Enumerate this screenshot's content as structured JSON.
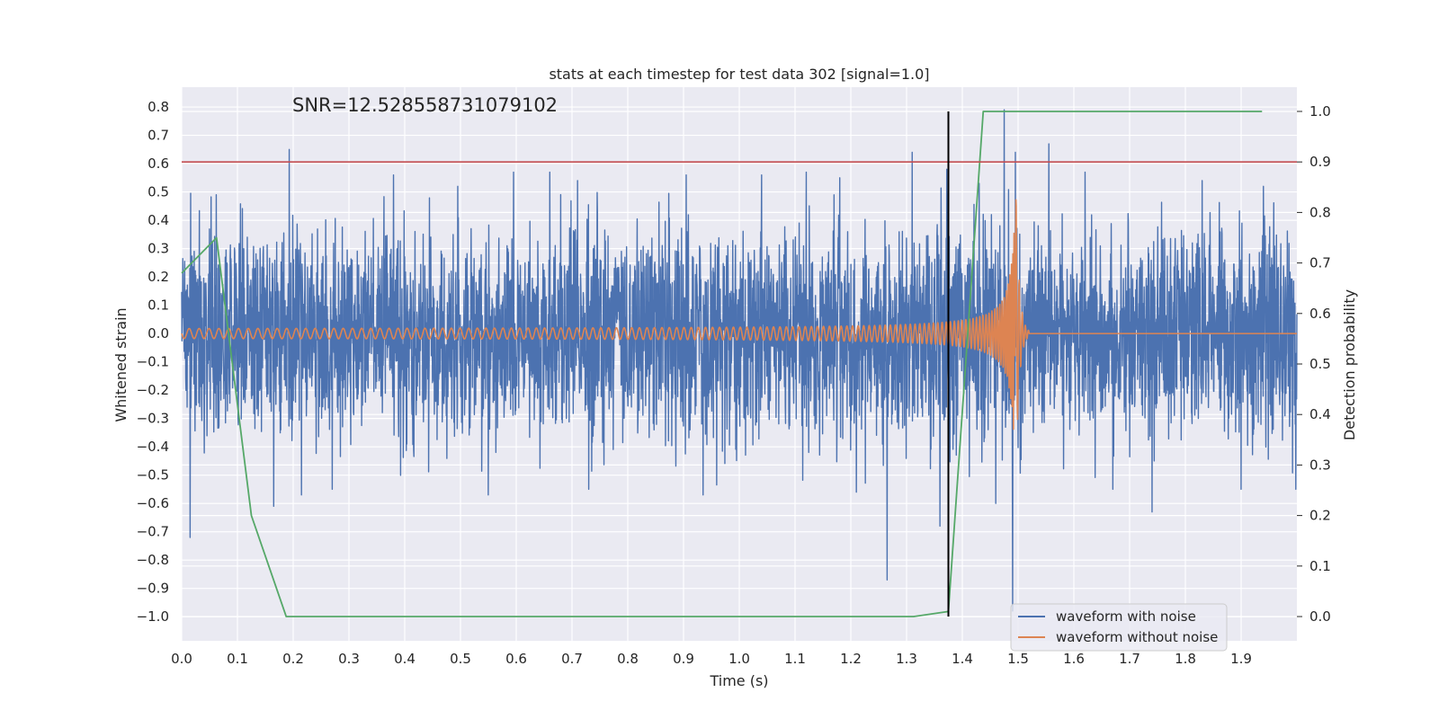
{
  "chart_data": {
    "type": "line",
    "title": "stats at each timestep for test data 302 [signal=1.0]",
    "annotation": "SNR=12.528558731079102",
    "xlabel": "Time (s)",
    "ylabel_left": "Whitened strain",
    "ylabel_right": "Detection probability",
    "xlim": [
      0.0,
      2.0
    ],
    "ylim_left": [
      -1.085,
      0.87
    ],
    "ylim_right": [
      -0.048,
      1.048
    ],
    "x_ticks": [
      "0.0",
      "0.1",
      "0.2",
      "0.3",
      "0.4",
      "0.5",
      "0.6",
      "0.7",
      "0.8",
      "0.9",
      "1.0",
      "1.1",
      "1.2",
      "1.3",
      "1.4",
      "1.5",
      "1.6",
      "1.7",
      "1.8",
      "1.9"
    ],
    "y_ticks_left": [
      "0.8",
      "0.7",
      "0.6",
      "0.5",
      "0.4",
      "0.3",
      "0.2",
      "0.1",
      "0.0",
      "−0.1",
      "−0.2",
      "−0.3",
      "−0.4",
      "−0.5",
      "−0.6",
      "−0.7",
      "−0.8",
      "−0.9",
      "−1.0"
    ],
    "y_ticks_right": [
      "1.0",
      "0.9",
      "0.8",
      "0.7",
      "0.6",
      "0.5",
      "0.4",
      "0.3",
      "0.2",
      "0.1",
      "0.0"
    ],
    "threshold": {
      "axis": "right",
      "value": 0.9,
      "color": "#c44e52"
    },
    "detection_marker": {
      "x": 1.375,
      "y_range_right": [
        0.0,
        1.0
      ],
      "color": "#000000"
    },
    "series": [
      {
        "name": "waveform with noise",
        "axis": "left",
        "color": "#4c72b0",
        "kind": "noise",
        "sample_rate": 2048,
        "std": 0.18,
        "seed": 302,
        "spikes": [
          [
            0.015,
            -0.72
          ],
          [
            0.062,
            0.49
          ],
          [
            0.193,
            0.65
          ],
          [
            0.165,
            -0.61
          ],
          [
            0.215,
            -0.57
          ],
          [
            0.27,
            -0.55
          ],
          [
            0.38,
            0.56
          ],
          [
            0.495,
            0.52
          ],
          [
            0.55,
            -0.57
          ],
          [
            0.595,
            0.57
          ],
          [
            0.66,
            0.57
          ],
          [
            0.71,
            0.54
          ],
          [
            0.73,
            -0.55
          ],
          [
            0.905,
            0.56
          ],
          [
            0.935,
            -0.57
          ],
          [
            1.04,
            0.56
          ],
          [
            1.12,
            0.57
          ],
          [
            1.18,
            0.55
          ],
          [
            1.21,
            -0.56
          ],
          [
            1.265,
            -0.87
          ],
          [
            1.31,
            0.64
          ],
          [
            1.36,
            -0.68
          ],
          [
            1.372,
            0.58
          ],
          [
            1.43,
            0.53
          ],
          [
            1.46,
            -0.6
          ],
          [
            1.475,
            0.79
          ],
          [
            1.49,
            -0.98
          ],
          [
            1.495,
            0.64
          ],
          [
            1.555,
            0.67
          ],
          [
            1.62,
            0.57
          ],
          [
            1.67,
            -0.55
          ],
          [
            1.74,
            -0.63
          ],
          [
            1.83,
            0.54
          ],
          [
            1.9,
            -0.55
          ],
          [
            1.94,
            0.52
          ],
          [
            1.998,
            -0.55
          ]
        ]
      },
      {
        "name": "waveform without noise",
        "axis": "left",
        "color": "#dd8452",
        "kind": "chirp",
        "sample_rate": 2048,
        "merger_time": 1.495,
        "ringdown_end": 1.52,
        "amp_start": 0.015,
        "amp_peak": 0.6,
        "freq_start": 5.0,
        "freq_end": 45.0
      },
      {
        "name": "Detection probability",
        "axis": "right",
        "color": "#55a868",
        "kind": "line",
        "x": [
          0.0,
          0.0625,
          0.125,
          0.1875,
          0.25,
          0.3125,
          0.375,
          0.4375,
          0.5,
          0.5625,
          0.625,
          0.6875,
          0.75,
          0.8125,
          0.875,
          0.9375,
          1.0,
          1.0625,
          1.125,
          1.1875,
          1.25,
          1.3125,
          1.375,
          1.4375,
          1.5,
          1.5625,
          1.625,
          1.6875,
          1.75,
          1.8125,
          1.875,
          1.9375
        ],
        "y": [
          0.68,
          0.75,
          0.2,
          0.0,
          0.0,
          0.0,
          0.0,
          0.0,
          0.0,
          0.0,
          0.0,
          0.0,
          0.0,
          0.0,
          0.0,
          0.0,
          0.0,
          0.0,
          0.0,
          0.0,
          0.0,
          0.0,
          0.01,
          1.0,
          1.0,
          1.0,
          1.0,
          1.0,
          1.0,
          1.0,
          1.0,
          1.0
        ]
      }
    ],
    "legend": {
      "placement": "lower-right",
      "entries": [
        {
          "label": "waveform with noise",
          "color": "#4c72b0"
        },
        {
          "label": "waveform without noise",
          "color": "#dd8452"
        }
      ]
    },
    "style": {
      "plot_bg": "#eaeaf2",
      "grid": "#ffffff",
      "grid_on": true
    }
  }
}
